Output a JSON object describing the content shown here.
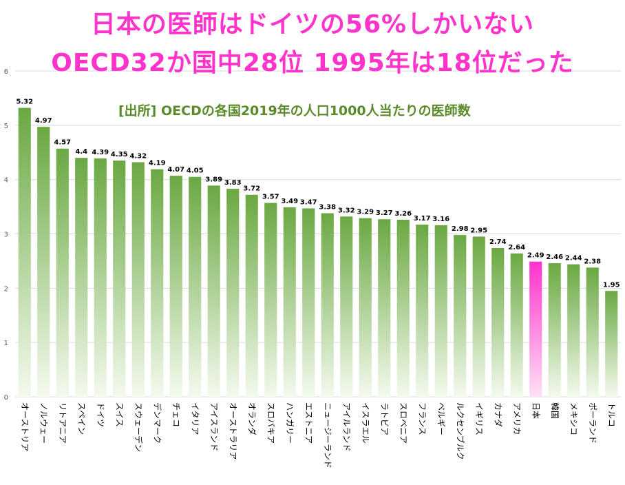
{
  "headline": {
    "line1": "日本の医師はドイツの56%しかいない",
    "line2": "OECD32か国中28位 1995年は18位だった"
  },
  "source_note": "[出所] OECDの各国2019年の人口1000人当たりの医師数",
  "colors": {
    "headline": "#ff33cc",
    "source_note": "#5a8a2a",
    "bar_top": "#6aa842",
    "bar_bottom": "#f4faee",
    "highlight_top": "#ff33cc",
    "highlight_bottom": "#ffe0f5",
    "gridline": "#d9d9d9"
  },
  "chart_data": {
    "type": "bar",
    "title": "",
    "xlabel": "",
    "ylabel": "",
    "ylim": [
      0,
      6
    ],
    "yticks": [
      0,
      1,
      2,
      3,
      4,
      5,
      6
    ],
    "grid": true,
    "highlight": "日本",
    "categories": [
      "オーストリア",
      "ノルウェー",
      "リトアニア",
      "スペイン",
      "ドイツ",
      "スイス",
      "スウェーデン",
      "デンマーク",
      "チェコ",
      "イタリア",
      "アイスランド",
      "オーストラリア",
      "オランダ",
      "スロバキア",
      "ハンガリー",
      "エストニア",
      "ニュージーランド",
      "アイルランド",
      "イスラエル",
      "ラトビア",
      "スロベニア",
      "フランス",
      "ベルギー",
      "ルクセンブルク",
      "イギリス",
      "カナダ",
      "アメリカ",
      "日本",
      "韓国",
      "メキシコ",
      "ポーランド",
      "トルコ"
    ],
    "values": [
      5.32,
      4.97,
      4.57,
      4.4,
      4.39,
      4.35,
      4.32,
      4.19,
      4.07,
      4.05,
      3.89,
      3.83,
      3.72,
      3.57,
      3.49,
      3.47,
      3.38,
      3.32,
      3.29,
      3.27,
      3.26,
      3.17,
      3.16,
      2.98,
      2.95,
      2.74,
      2.64,
      2.49,
      2.46,
      2.44,
      2.38,
      1.95
    ],
    "value_labels": [
      "5.32",
      "4.97",
      "4.57",
      "4.4",
      "4.39",
      "4.35",
      "4.32",
      "4.19",
      "4.07",
      "4.05",
      "3.89",
      "3.83",
      "3.72",
      "3.57",
      "3.49",
      "3.47",
      "3.38",
      "3.32",
      "3.29",
      "3.27",
      "3.26",
      "3.17",
      "3.16",
      "2.98",
      "2.95",
      "2.74",
      "2.64",
      "2.49",
      "2.46",
      "2.44",
      "2.38",
      "1.95"
    ]
  }
}
